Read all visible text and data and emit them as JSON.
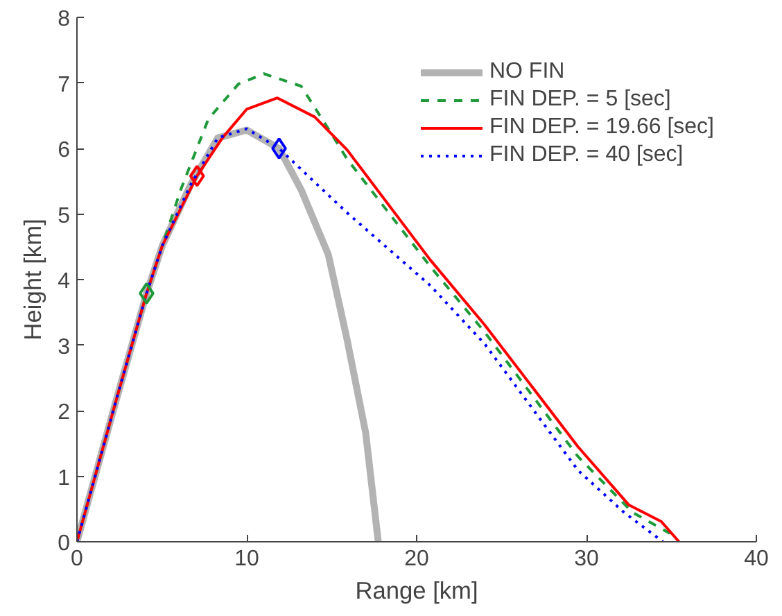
{
  "chart_data": {
    "type": "line",
    "xlabel": "Range [km]",
    "ylabel": "Height [km]",
    "xlim": [
      0,
      40
    ],
    "ylim": [
      0,
      8
    ],
    "xticks": [
      0,
      10,
      20,
      30,
      40
    ],
    "yticks": [
      0,
      1,
      2,
      3,
      4,
      5,
      6,
      7,
      8
    ],
    "grid": false,
    "legend": "top right",
    "marker": "none",
    "series": [
      {
        "name": "NO FIN",
        "color": "#b3b3b3",
        "line_style": "solid",
        "x": [
          0,
          2.31,
          4.1,
          5.03,
          6.7,
          8.29,
          10,
          11.9,
          13.2,
          14.8,
          15.9,
          17.0,
          17.74
        ],
        "values": [
          0,
          2.16,
          3.79,
          4.52,
          5.45,
          6.16,
          6.28,
          6.0,
          5.37,
          4.38,
          3.09,
          1.66,
          0
        ]
      },
      {
        "name": "FIN DEP. = 5 [sec]",
        "color": "#1f9a3a",
        "line_style": "dashed",
        "x": [
          0,
          2.31,
          4.1,
          6.11,
          7.74,
          9.5,
          11.0,
          13.2,
          14.8,
          15.9,
          20.8,
          24.0,
          29.5,
          32.7,
          34.9,
          35.1
        ],
        "values": [
          0,
          2.16,
          3.79,
          5.37,
          6.45,
          6.98,
          7.14,
          6.95,
          6.3,
          5.84,
          4.2,
          3.2,
          1.3,
          0.45,
          0.13,
          0
        ]
      },
      {
        "name": "FIN DEP. = 19.66 [sec]",
        "color": "#ff0000",
        "line_style": "solid",
        "x": [
          0,
          2.31,
          4.1,
          5.03,
          7.07,
          8.56,
          10.0,
          11.8,
          14.0,
          15.9,
          20.8,
          24.0,
          29.5,
          32.5,
          34.4,
          35.45
        ],
        "values": [
          0,
          2.16,
          3.79,
          4.52,
          5.58,
          6.16,
          6.6,
          6.77,
          6.48,
          5.98,
          4.3,
          3.31,
          1.45,
          0.56,
          0.31,
          0
        ]
      },
      {
        "name": "FIN DEP. = 40 [sec]",
        "color": "#0000ff",
        "line_style": "dotted",
        "x": [
          0,
          2.31,
          4.1,
          5.03,
          6.7,
          8.29,
          10,
          11.9,
          15.9,
          20.8,
          24.0,
          29.5,
          32.2,
          34.5
        ],
        "values": [
          0,
          2.16,
          3.79,
          4.52,
          5.45,
          6.16,
          6.3,
          6.0,
          5.02,
          3.91,
          3.02,
          1.09,
          0.45,
          0
        ]
      },
      {
        "type": "scatter",
        "marker": "diamond",
        "color": "#1f9a3a",
        "x": [
          4.1
        ],
        "values": [
          3.79
        ]
      },
      {
        "type": "scatter",
        "marker": "diamond",
        "color": "#ff0000",
        "x": [
          7.07
        ],
        "values": [
          5.58
        ]
      },
      {
        "type": "scatter",
        "marker": "diamond",
        "color": "#0000ff",
        "x": [
          11.9
        ],
        "values": [
          6.0
        ]
      }
    ]
  }
}
